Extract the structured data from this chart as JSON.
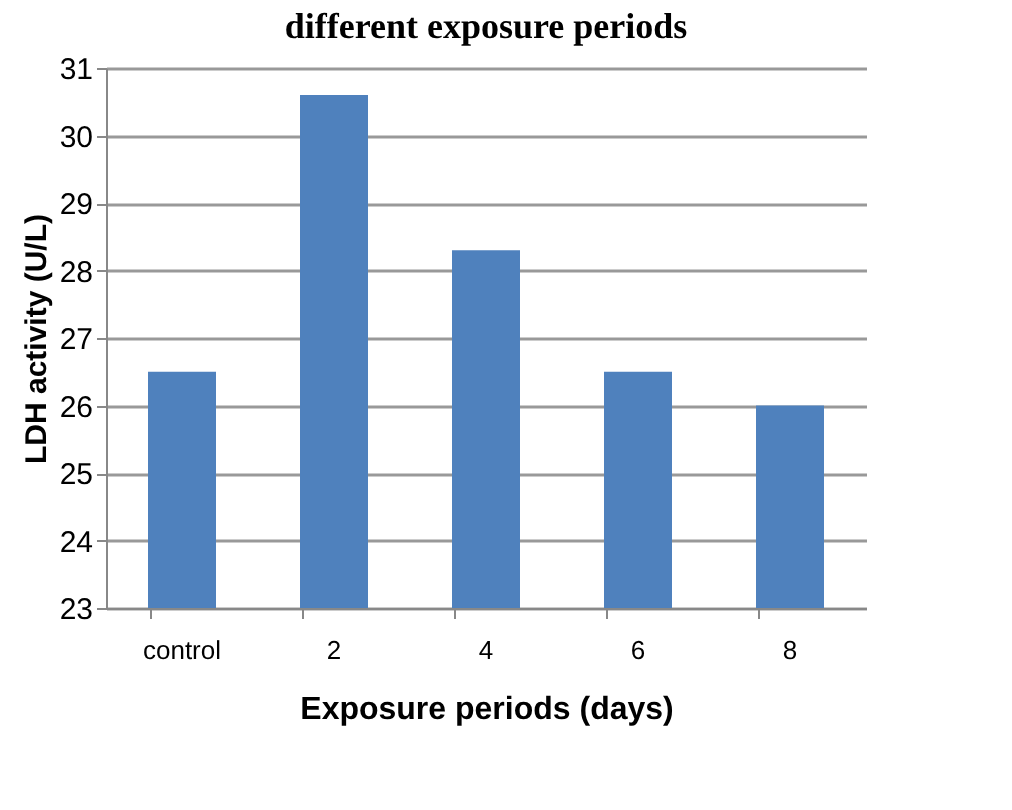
{
  "chart_data": {
    "type": "bar",
    "title": "different exposure periods",
    "xlabel": "Exposure periods (days)",
    "ylabel": "LDH activity (U/L)",
    "categories": [
      "control",
      "2",
      "4",
      "6",
      "8"
    ],
    "values": [
      26.5,
      30.6,
      28.3,
      26.5,
      26.0
    ],
    "color": "#4f81bd",
    "ylim": [
      23,
      31
    ],
    "yticks": [
      23,
      24,
      25,
      26,
      27,
      28,
      29,
      30,
      31
    ],
    "grid": "y"
  }
}
